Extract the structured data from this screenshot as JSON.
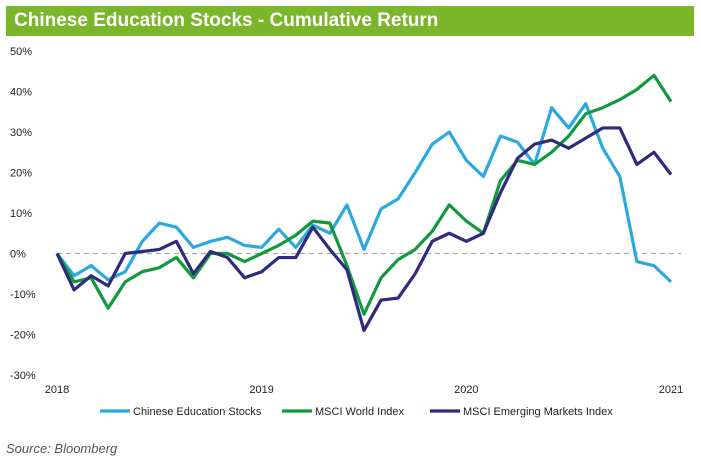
{
  "title": "Chinese Education Stocks - Cumulative Return",
  "source": "Source: Bloomberg",
  "chart_data": {
    "type": "line",
    "title": "Chinese Education Stocks - Cumulative Return",
    "xlabel": "",
    "ylabel": "",
    "ylim": [
      -30,
      50
    ],
    "yticks": [
      "50%",
      "40%",
      "30%",
      "20%",
      "10%",
      "0%",
      "-10%",
      "-20%",
      "-30%"
    ],
    "ytick_values": [
      50,
      40,
      30,
      20,
      10,
      0,
      -10,
      -20,
      -30
    ],
    "xticks": [
      "2018",
      "2019",
      "2020",
      "2021"
    ],
    "x_note": "monthly, Jan 2018 to Jan 2021",
    "legend_position": "bottom",
    "series": [
      {
        "name": "Chinese Education Stocks",
        "color": "#2aa9e0",
        "values": [
          0,
          -5.5,
          -3,
          -6.5,
          -4.5,
          3,
          7.5,
          6.5,
          1.5,
          3,
          4,
          2,
          1.5,
          6,
          1.5,
          7,
          5,
          12,
          1,
          11,
          13.5,
          20,
          27,
          30,
          23,
          19,
          29,
          27.5,
          22,
          36,
          31,
          37,
          26,
          19,
          -2,
          -3,
          -7
        ]
      },
      {
        "name": "MSCI World Index",
        "color": "#0f9a3c",
        "values": [
          0,
          -7,
          -6,
          -13.5,
          -7,
          -4.5,
          -3.5,
          -1,
          -6,
          0,
          0,
          -2,
          0,
          2,
          4.5,
          8,
          7.5,
          -3,
          -15,
          -6,
          -1.5,
          1,
          5.5,
          12,
          8,
          5,
          18,
          23,
          22,
          25,
          29,
          34.5,
          36,
          38,
          40.5,
          44,
          37.5
        ]
      },
      {
        "name": "MSCI Emerging Markets Index",
        "color": "#2e2a7e",
        "values": [
          0,
          -9,
          -5.5,
          -8,
          0,
          0.5,
          1,
          3,
          -5,
          0.5,
          -1,
          -6,
          -4.5,
          -1,
          -1,
          6.5,
          1,
          -4,
          -19,
          -11.5,
          -11,
          -5,
          3,
          5,
          3,
          5,
          15,
          23.5,
          27,
          28,
          26,
          28.5,
          31,
          31,
          22,
          25,
          19.5
        ]
      }
    ]
  }
}
